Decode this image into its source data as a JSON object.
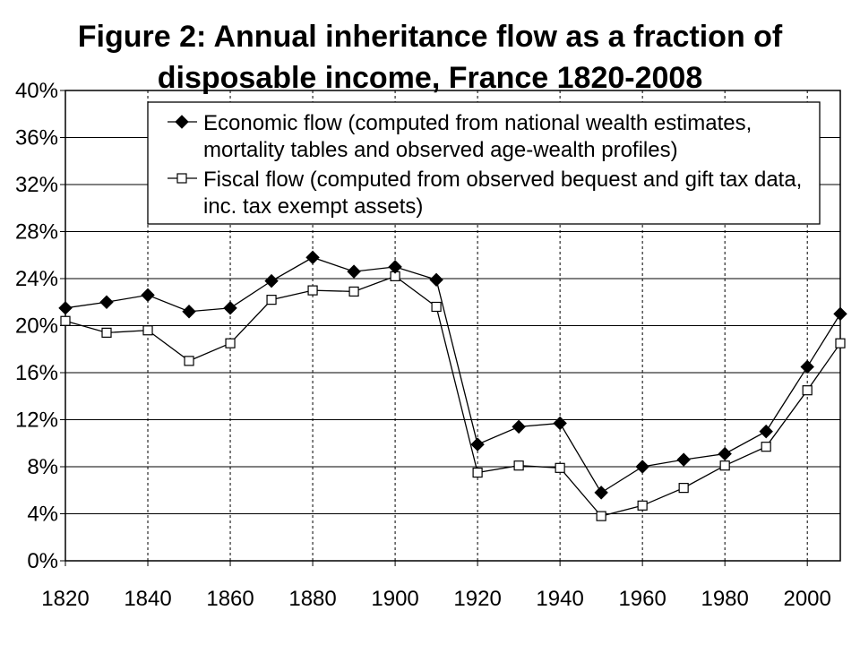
{
  "title_lines": [
    "Figure 2: Annual inheritance flow as a fraction of",
    "disposable income, France 1820-2008"
  ],
  "chart_data": {
    "type": "line",
    "title": "Figure 2: Annual inheritance flow as a fraction of disposable income, France 1820-2008",
    "xlabel": "",
    "ylabel": "",
    "xlim": [
      1820,
      2008
    ],
    "ylim": [
      0,
      40
    ],
    "x_ticks": [
      1820,
      1840,
      1860,
      1880,
      1900,
      1920,
      1940,
      1960,
      1980,
      2000
    ],
    "x_tick_labels": [
      "1820",
      "1840",
      "1860",
      "1880",
      "1900",
      "1920",
      "1940",
      "1960",
      "1980",
      "2000"
    ],
    "y_ticks": [
      0,
      4,
      8,
      12,
      16,
      20,
      24,
      28,
      32,
      36,
      40
    ],
    "y_tick_labels": [
      "0%",
      "4%",
      "8%",
      "12%",
      "16%",
      "20%",
      "24%",
      "28%",
      "32%",
      "36%",
      "40%"
    ],
    "grid": {
      "horizontal": "solid",
      "vertical": "dashed"
    },
    "legend_position": "top",
    "series": [
      {
        "name": "Economic flow (computed from national wealth estimates, mortality tables and observed age-wealth profiles)",
        "legend_lines": [
          "Economic flow (computed from national wealth estimates,",
          "mortality tables and observed age-wealth profiles)"
        ],
        "marker": "filled-diamond",
        "color": "#000000",
        "x": [
          1820,
          1830,
          1840,
          1850,
          1860,
          1870,
          1880,
          1890,
          1900,
          1910,
          1920,
          1930,
          1940,
          1950,
          1960,
          1970,
          1980,
          1990,
          2000,
          2008
        ],
        "values": [
          21.5,
          22.0,
          22.6,
          21.2,
          21.5,
          23.8,
          25.8,
          24.6,
          25.0,
          23.9,
          9.9,
          11.4,
          11.7,
          5.8,
          8.0,
          8.6,
          9.1,
          11.0,
          16.5,
          21.0
        ]
      },
      {
        "name": "Fiscal flow (computed from observed bequest and gift tax data, inc. tax exempt assets)",
        "legend_lines": [
          "Fiscal flow (computed from observed bequest and gift tax data,",
          "inc. tax exempt assets)"
        ],
        "marker": "hollow-square",
        "color": "#000000",
        "x": [
          1820,
          1830,
          1840,
          1850,
          1860,
          1870,
          1880,
          1890,
          1900,
          1910,
          1920,
          1930,
          1940,
          1950,
          1960,
          1970,
          1980,
          1990,
          2000,
          2008
        ],
        "values": [
          20.4,
          19.4,
          19.6,
          17.0,
          18.5,
          22.2,
          23.0,
          22.9,
          24.2,
          21.6,
          7.5,
          8.1,
          7.9,
          3.8,
          4.7,
          6.2,
          8.1,
          9.7,
          14.5,
          18.5
        ]
      }
    ]
  }
}
